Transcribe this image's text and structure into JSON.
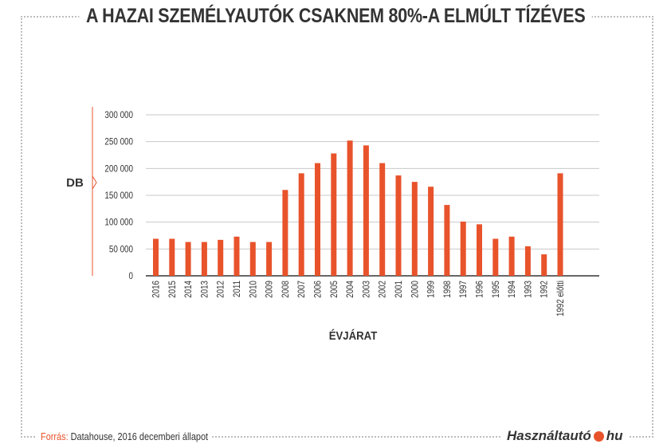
{
  "title": "A HAZAI SZEMÉLYAUTÓK CSAKNEM 80%-A ELMÚLT TÍZÉVES",
  "footer": {
    "source_label": "Forrás:",
    "source_text": " Datahouse, 2016 decemberi állapot",
    "logo_part1": "Használtautó",
    "logo_part2": "hu"
  },
  "colors": {
    "bar": "#e8532b",
    "accent": "#e8532b",
    "grid": "#c8c8c8",
    "text": "#333333"
  },
  "chart_data": {
    "type": "bar",
    "title": "A HAZAI SZEMÉLYAUTÓK CSAKNEM 80%-A ELMÚLT TÍZÉVES",
    "xlabel": "ÉVJÁRAT",
    "ylabel": "DB",
    "ylim": [
      0,
      300000
    ],
    "yticks": [
      0,
      50000,
      100000,
      150000,
      200000,
      250000,
      300000
    ],
    "ytick_labels": [
      "0",
      "50 000",
      "100 000",
      "150 000",
      "200 000",
      "250 000",
      "300 000"
    ],
    "grid": true,
    "categories": [
      "2016",
      "2015",
      "2014",
      "2013",
      "2012",
      "2011",
      "2010",
      "2009",
      "2008",
      "2007",
      "2006",
      "2005",
      "2004",
      "2003",
      "2002",
      "2001",
      "2000",
      "1999",
      "1998",
      "1997",
      "1996",
      "1995",
      "1994",
      "1993",
      "1992",
      "1992 előtti"
    ],
    "values": [
      69000,
      69000,
      63000,
      63000,
      67000,
      73000,
      63000,
      63000,
      160000,
      191000,
      210000,
      228000,
      252000,
      243000,
      210000,
      187000,
      175000,
      166000,
      132000,
      101000,
      96000,
      69000,
      73000,
      55000,
      40000,
      191000
    ]
  }
}
